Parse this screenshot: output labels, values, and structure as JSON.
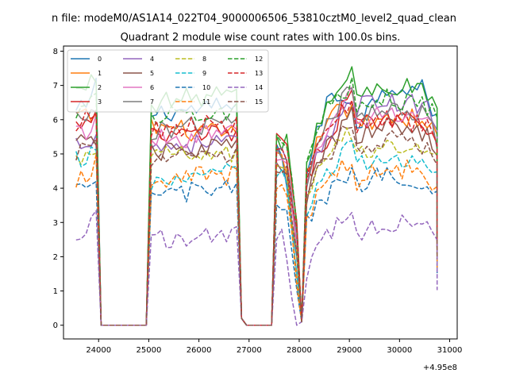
{
  "chart_data": {
    "type": "line",
    "suptitle": "n file: modeM0/AS1A14_022T04_9000006506_53810cztM0_level2_quad_clean",
    "title": "Quadrant 2 module wise count rates with 100.0s bins.",
    "xlabel": "",
    "ylabel": "",
    "x_offset_label": "+4.95e8",
    "xlim": [
      23300,
      31150
    ],
    "ylim": [
      -0.4,
      8.15
    ],
    "x_ticks": [
      24000,
      25000,
      26000,
      27000,
      28000,
      29000,
      30000,
      31000
    ],
    "y_ticks": [
      0,
      1,
      2,
      3,
      4,
      5,
      6,
      7,
      8
    ],
    "x_tick_labels": [
      "24000",
      "25000",
      "26000",
      "27000",
      "28000",
      "29000",
      "30000",
      "31000"
    ],
    "y_tick_labels": [
      "0",
      "1",
      "2",
      "3",
      "4",
      "5",
      "6",
      "7",
      "8"
    ],
    "grid": false,
    "legend_placement": "top-left",
    "legend_columns": 4,
    "series": [
      {
        "name": "0",
        "color": "#1f77b4",
        "dash": "solid",
        "profile": [
          6.2,
          6.5,
          7.0,
          6.2,
          6.4,
          5.0,
          4.9,
          4.5,
          6.6,
          6.8,
          6.7,
          5.8,
          7.0,
          6.7,
          5.6,
          6.6
        ]
      },
      {
        "name": "1",
        "color": "#ff7f0e",
        "dash": "solid",
        "profile": [
          6.1,
          6.0,
          6.2,
          5.8,
          5.5,
          4.8,
          4.7,
          4.3,
          6.2,
          6.3,
          6.2,
          5.9,
          6.1,
          5.9,
          5.2,
          6.0
        ]
      },
      {
        "name": "2",
        "color": "#2ca02c",
        "dash": "solid",
        "profile": [
          6.8,
          7.1,
          7.3,
          6.5,
          6.8,
          5.3,
          6.0,
          4.8,
          6.5,
          7.0,
          7.7,
          6.6,
          7.0,
          6.7,
          6.0,
          6.8
        ]
      },
      {
        "name": "3",
        "color": "#d62728",
        "dash": "solid",
        "profile": [
          5.8,
          5.9,
          6.1,
          5.5,
          5.6,
          5.4,
          5.8,
          4.3,
          5.5,
          6.2,
          7.3,
          5.8,
          6.1,
          5.8,
          5.0,
          6.0
        ]
      },
      {
        "name": "4",
        "color": "#9467bd",
        "dash": "solid",
        "profile": [
          5.3,
          5.5,
          5.6,
          5.2,
          5.4,
          4.9,
          5.4,
          4.0,
          5.6,
          6.0,
          7.0,
          6.4,
          6.5,
          6.3,
          5.5,
          6.3
        ]
      },
      {
        "name": "5",
        "color": "#8c564b",
        "dash": "solid",
        "profile": [
          5.2,
          5.5,
          5.5,
          5.0,
          5.3,
          4.6,
          5.1,
          3.8,
          5.2,
          5.7,
          6.4,
          5.5,
          5.8,
          5.5,
          4.8,
          5.5
        ]
      },
      {
        "name": "6",
        "color": "#e377c2",
        "dash": "solid",
        "profile": [
          5.6,
          5.8,
          6.0,
          5.4,
          5.6,
          4.7,
          5.5,
          4.1,
          5.7,
          6.0,
          7.2,
          6.0,
          6.2,
          5.9,
          5.0,
          5.9
        ]
      },
      {
        "name": "7",
        "color": "#7f7f7f",
        "dash": "solid",
        "profile": [
          6.0,
          6.0,
          6.3,
          5.7,
          5.9,
          5.1,
          5.7,
          4.2,
          5.9,
          6.1,
          7.3,
          6.1,
          6.4,
          6.0,
          5.0,
          6.2
        ]
      },
      {
        "name": "8",
        "color": "#bcbd22",
        "dash": "dashed",
        "profile": [
          4.7,
          5.0,
          5.3,
          4.9,
          5.0,
          4.6,
          4.9,
          3.6,
          5.1,
          5.4,
          5.8,
          5.0,
          5.3,
          5.0,
          4.5,
          5.0
        ]
      },
      {
        "name": "9",
        "color": "#17becf",
        "dash": "dashed",
        "profile": [
          4.8,
          4.9,
          5.0,
          4.2,
          4.5,
          4.3,
          4.6,
          3.3,
          4.5,
          4.8,
          5.4,
          4.6,
          4.9,
          4.6,
          4.0,
          4.6
        ]
      },
      {
        "name": "10",
        "color": "#1f77b4",
        "dash": "dashed",
        "profile": [
          3.8,
          4.0,
          4.3,
          3.8,
          4.0,
          3.5,
          3.9,
          3.0,
          3.8,
          4.2,
          4.8,
          4.0,
          4.4,
          4.1,
          3.5,
          4.0
        ]
      },
      {
        "name": "11",
        "color": "#ff7f0e",
        "dash": "dashed",
        "profile": [
          4.3,
          4.5,
          4.7,
          4.3,
          4.4,
          4.0,
          4.4,
          3.2,
          4.2,
          4.5,
          5.0,
          4.2,
          4.6,
          4.3,
          3.7,
          4.2
        ]
      },
      {
        "name": "12",
        "color": "#2ca02c",
        "dash": "dashed",
        "profile": [
          6.3,
          6.5,
          6.7,
          6.1,
          6.3,
          5.6,
          5.9,
          4.5,
          6.3,
          6.6,
          7.1,
          6.4,
          6.6,
          6.3,
          5.8,
          6.5
        ]
      },
      {
        "name": "13",
        "color": "#d62728",
        "dash": "dashed",
        "profile": [
          5.9,
          6.1,
          6.3,
          5.7,
          5.9,
          5.2,
          5.6,
          4.2,
          5.8,
          6.1,
          6.6,
          5.7,
          6.0,
          5.6,
          5.0,
          5.8
        ]
      },
      {
        "name": "14",
        "color": "#9467bd",
        "dash": "dashed",
        "profile": [
          2.7,
          2.8,
          3.1,
          2.5,
          2.7,
          2.6,
          2.8,
          1.6,
          2.6,
          2.9,
          3.5,
          2.7,
          3.0,
          2.7,
          2.4,
          2.7
        ]
      },
      {
        "name": "15",
        "color": "#8c564b",
        "dash": "dashed",
        "profile": [
          5.0,
          5.2,
          5.4,
          4.8,
          5.0,
          4.6,
          5.0,
          3.7,
          5.0,
          5.3,
          6.2,
          5.1,
          5.4,
          5.1,
          4.6,
          5.1
        ]
      }
    ]
  }
}
